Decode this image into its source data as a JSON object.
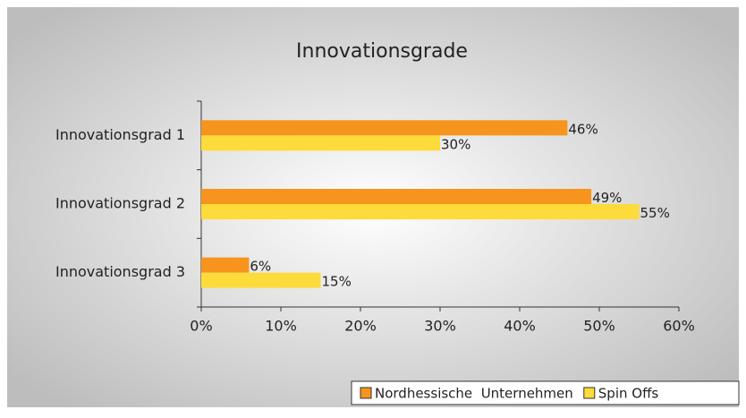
{
  "chart_data": {
    "type": "bar",
    "orientation": "horizontal",
    "title": "Innovationsgrade",
    "categories": [
      "Innovationsgrad 1",
      "Innovationsgrad 2",
      "Innovationsgrad 3"
    ],
    "series": [
      {
        "name": "Nordhessische  Unternehmen",
        "color": "#f7941d",
        "values": [
          46,
          49,
          6
        ],
        "value_labels": [
          "46%",
          "49%",
          "6%"
        ]
      },
      {
        "name": "Spin Offs",
        "color": "#fddb3a",
        "values": [
          30,
          55,
          15
        ],
        "value_labels": [
          "30%",
          "55%",
          "15%"
        ]
      }
    ],
    "xlim": [
      0,
      60
    ],
    "xticks": [
      {
        "value": 0,
        "label": "0%"
      },
      {
        "value": 10,
        "label": "10%"
      },
      {
        "value": 20,
        "label": "20%"
      },
      {
        "value": 30,
        "label": "30%"
      },
      {
        "value": 40,
        "label": "40%"
      },
      {
        "value": 50,
        "label": "50%"
      },
      {
        "value": 60,
        "label": "60%"
      }
    ],
    "legend": "bottom-right"
  }
}
